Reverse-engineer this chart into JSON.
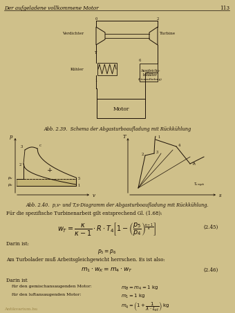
{
  "bg_color": "#cfc08a",
  "header_text": "Der aufgeladene vollkommene Motor",
  "page_number": "113",
  "fig_caption1": "Abb. 2.39.  Schema der Abgasturboaufladung mit Rückkühlung",
  "fig_caption2": "Abb. 2.40.  p,v- und T,s-Diagramm der Abgasturboaufladung mit Rückkühlung.",
  "text_color": "#1a0e05",
  "line_color": "#1a0e05",
  "footer": "Antikvarium.hu"
}
